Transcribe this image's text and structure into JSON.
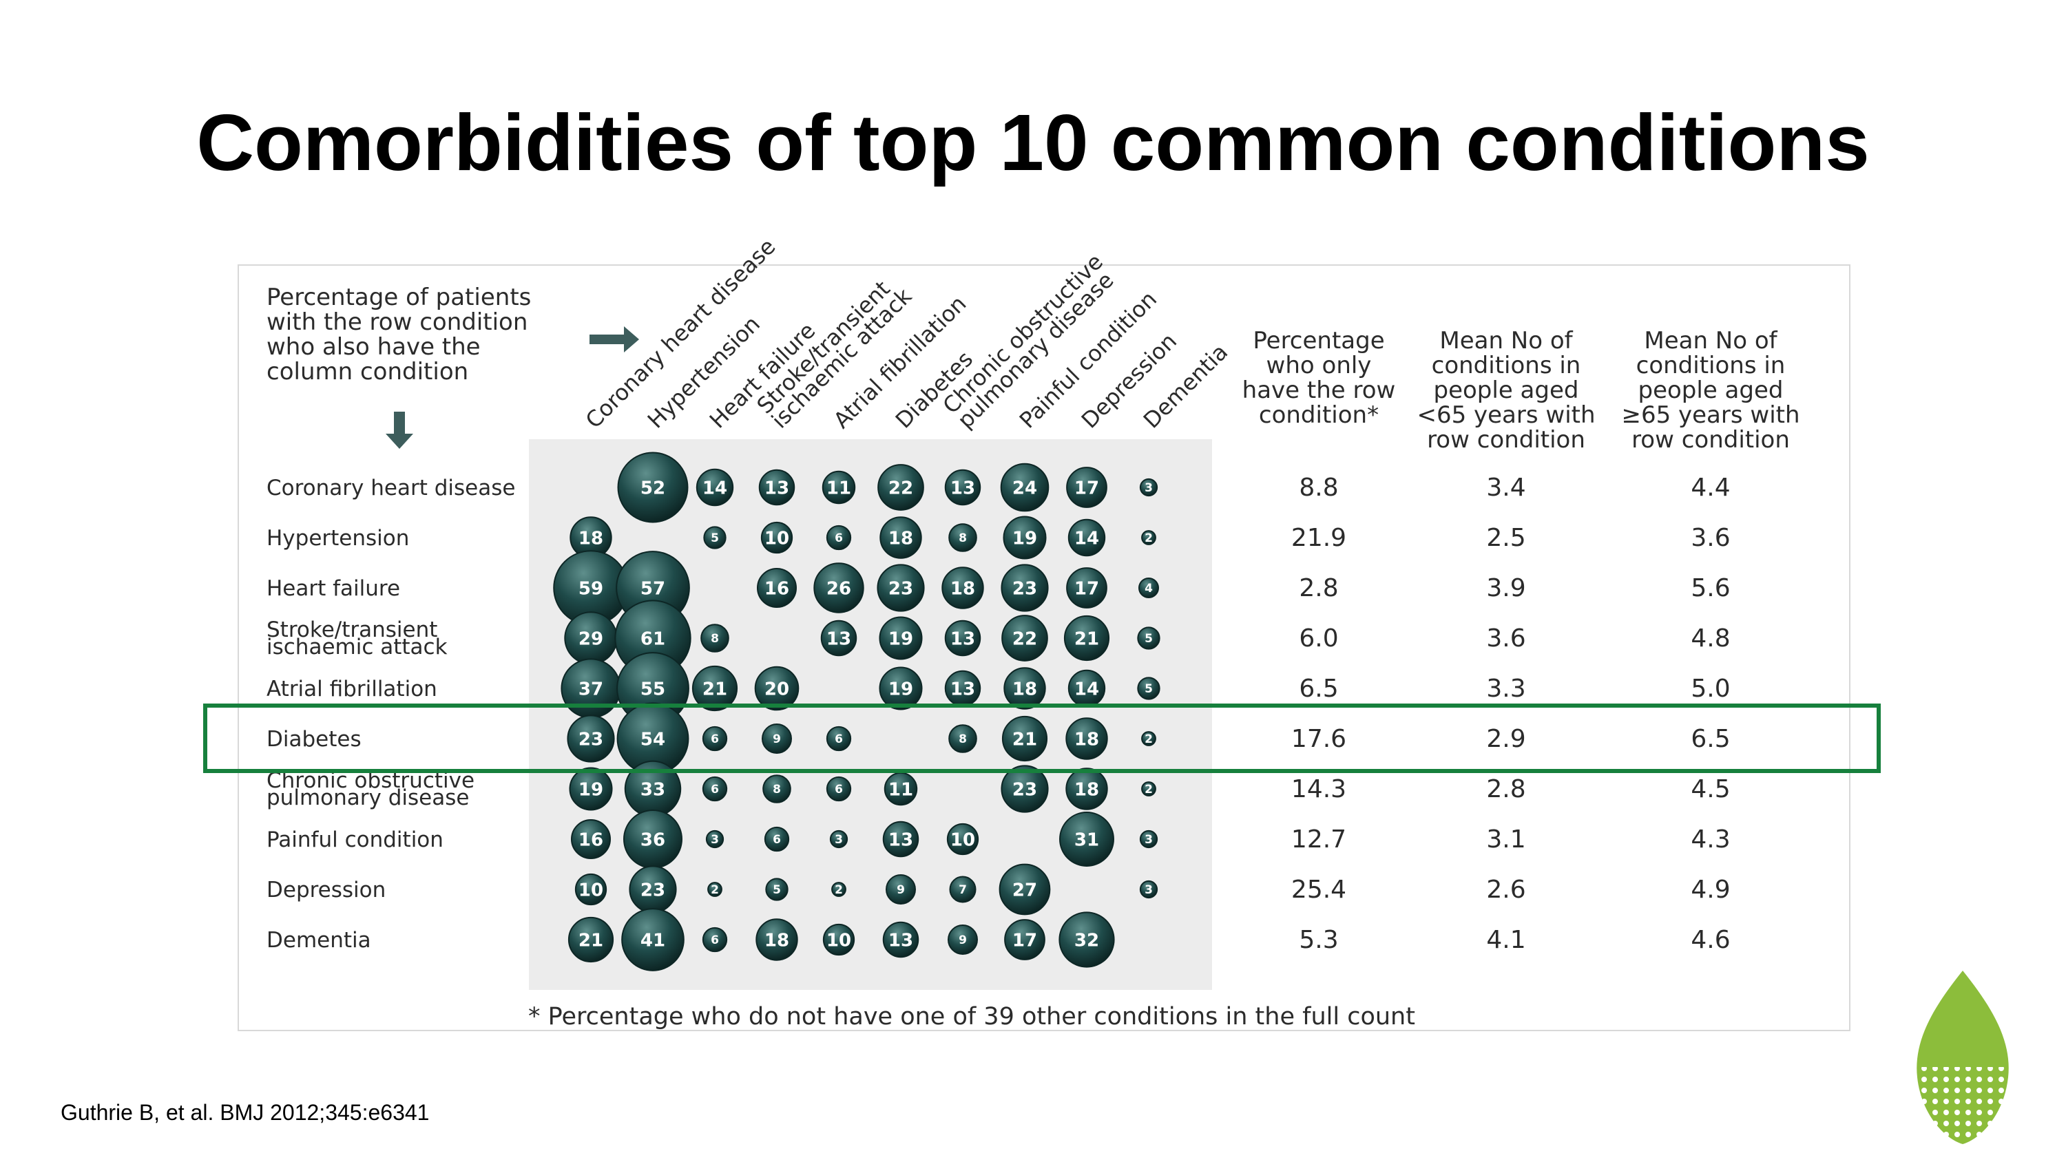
{
  "slide": {
    "title": "Comorbidities of top 10 common conditions",
    "source": "Guthrie B, et al. BMJ 2012;345:e6341"
  },
  "colors": {
    "bubble": "#1f4b4a",
    "bubble_highlight": "#5f8f8c",
    "grid_bg": "#ececec",
    "highlight_box": "#17803d",
    "logo_green": "#8cbd3b"
  },
  "icons": {
    "logo": "leaf-icon",
    "arrow_right": "arrow-right-icon",
    "arrow_down": "arrow-down-icon"
  },
  "chart_data": {
    "type": "table",
    "subtitle": "Percentage of patients with the row condition who also have the column condition",
    "subtitle_lines": [
      "Percentage of patients",
      "with the row condition",
      "who also have the",
      "column condition"
    ],
    "columns": [
      {
        "label": "Coronary heart disease",
        "lines": [
          "Coronary heart disease"
        ]
      },
      {
        "label": "Hypertension",
        "lines": [
          "Hypertension"
        ]
      },
      {
        "label": "Heart failure",
        "lines": [
          "Heart failure"
        ]
      },
      {
        "label": "Stroke/transient ischaemic attack",
        "lines": [
          "Stroke/transient",
          "ischaemic attack"
        ]
      },
      {
        "label": "Atrial fibrillation",
        "lines": [
          "Atrial fibrillation"
        ]
      },
      {
        "label": "Diabetes",
        "lines": [
          "Diabetes"
        ]
      },
      {
        "label": "Chronic obstructive pulmonary disease",
        "lines": [
          "Chronic obstructive",
          "pulmonary disease"
        ]
      },
      {
        "label": "Painful condition",
        "lines": [
          "Painful condition"
        ]
      },
      {
        "label": "Depression",
        "lines": [
          "Depression"
        ]
      },
      {
        "label": "Dementia",
        "lines": [
          "Dementia"
        ]
      }
    ],
    "rows": [
      {
        "label": "Coronary heart disease",
        "lines": [
          "Coronary heart disease"
        ],
        "values": [
          null,
          52,
          14,
          13,
          11,
          22,
          13,
          24,
          17,
          3
        ],
        "only_row_pct": "8.8",
        "mean_under65": "3.4",
        "mean_65plus": "4.4"
      },
      {
        "label": "Hypertension",
        "lines": [
          "Hypertension"
        ],
        "values": [
          18,
          null,
          5,
          10,
          6,
          18,
          8,
          19,
          14,
          2
        ],
        "only_row_pct": "21.9",
        "mean_under65": "2.5",
        "mean_65plus": "3.6"
      },
      {
        "label": "Heart failure",
        "lines": [
          "Heart failure"
        ],
        "values": [
          59,
          57,
          null,
          16,
          26,
          23,
          18,
          23,
          17,
          4
        ],
        "only_row_pct": "2.8",
        "mean_under65": "3.9",
        "mean_65plus": "5.6"
      },
      {
        "label": "Stroke/transient ischaemic attack",
        "lines": [
          "Stroke/transient",
          "ischaemic attack"
        ],
        "values": [
          29,
          61,
          8,
          null,
          13,
          19,
          13,
          22,
          21,
          5
        ],
        "only_row_pct": "6.0",
        "mean_under65": "3.6",
        "mean_65plus": "4.8"
      },
      {
        "label": "Atrial fibrillation",
        "lines": [
          "Atrial fibrillation"
        ],
        "values": [
          37,
          55,
          21,
          20,
          null,
          19,
          13,
          18,
          14,
          5
        ],
        "only_row_pct": "6.5",
        "mean_under65": "3.3",
        "mean_65plus": "5.0"
      },
      {
        "label": "Diabetes",
        "lines": [
          "Diabetes"
        ],
        "values": [
          23,
          54,
          6,
          9,
          6,
          null,
          8,
          21,
          18,
          2
        ],
        "only_row_pct": "17.6",
        "mean_under65": "2.9",
        "mean_65plus": "6.5",
        "highlighted": true
      },
      {
        "label": "Chronic obstructive pulmonary disease",
        "lines": [
          "Chronic obstructive",
          "pulmonary disease"
        ],
        "values": [
          19,
          33,
          6,
          8,
          6,
          11,
          null,
          23,
          18,
          2
        ],
        "only_row_pct": "14.3",
        "mean_under65": "2.8",
        "mean_65plus": "4.5"
      },
      {
        "label": "Painful condition",
        "lines": [
          "Painful condition"
        ],
        "values": [
          16,
          36,
          3,
          6,
          3,
          13,
          10,
          null,
          31,
          3
        ],
        "only_row_pct": "12.7",
        "mean_under65": "3.1",
        "mean_65plus": "4.3"
      },
      {
        "label": "Depression",
        "lines": [
          "Depression"
        ],
        "values": [
          10,
          23,
          2,
          5,
          2,
          9,
          7,
          27,
          null,
          3
        ],
        "only_row_pct": "25.4",
        "mean_under65": "2.6",
        "mean_65plus": "4.9"
      },
      {
        "label": "Dementia",
        "lines": [
          "Dementia"
        ],
        "values": [
          21,
          41,
          6,
          18,
          10,
          13,
          9,
          17,
          32,
          null
        ],
        "only_row_pct": "5.3",
        "mean_under65": "4.1",
        "mean_65plus": "4.6"
      }
    ],
    "stat_headers": [
      {
        "label": "Percentage who only have the row condition*",
        "lines": [
          "Percentage",
          "who only",
          "have the row",
          "condition*"
        ]
      },
      {
        "label": "Mean No of conditions in people aged <65 years with row condition",
        "lines": [
          "Mean No of",
          "conditions in",
          "people aged",
          "<65 years with",
          "row condition"
        ]
      },
      {
        "label": "Mean No of conditions in people aged ≥65 years with row condition",
        "lines": [
          "Mean No of",
          "conditions in",
          "people aged",
          "≥65 years with",
          "row condition"
        ]
      }
    ],
    "footnote": "* Percentage who do not have one of 39 other conditions in the full count",
    "highlighted_row": "Diabetes"
  }
}
